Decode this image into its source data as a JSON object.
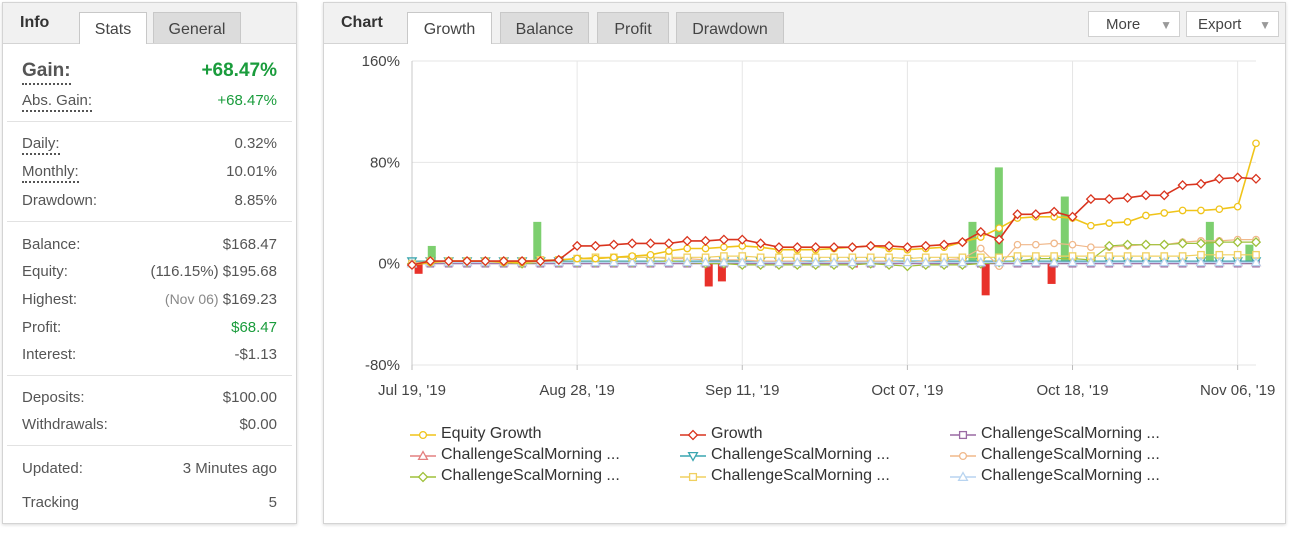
{
  "left_panel": {
    "tabs": [
      {
        "label": "Info",
        "active": false,
        "title": true
      },
      {
        "label": "Stats",
        "active": true
      },
      {
        "label": "General",
        "active": false
      }
    ],
    "gain": {
      "label": "Gain:",
      "value": "+68.47%"
    },
    "abs_gain": {
      "label": "Abs. Gain:",
      "value": "+68.47%"
    },
    "daily": {
      "label": "Daily:",
      "value": "0.32%"
    },
    "monthly": {
      "label": "Monthly:",
      "value": "10.01%"
    },
    "drawdown": {
      "label": "Drawdown:",
      "value": "8.85%"
    },
    "balance": {
      "label": "Balance:",
      "value": "$168.47"
    },
    "equity": {
      "label": "Equity:",
      "prefix": "(116.15%)",
      "value": "$195.68"
    },
    "highest": {
      "label": "Highest:",
      "prefix": "(Nov 06)",
      "value": "$169.23"
    },
    "profit": {
      "label": "Profit:",
      "value": "$68.47"
    },
    "interest": {
      "label": "Interest:",
      "value": "-$1.13"
    },
    "deposits": {
      "label": "Deposits:",
      "value": "$100.00"
    },
    "withdrawals": {
      "label": "Withdrawals:",
      "value": "$0.00"
    },
    "updated": {
      "label": "Updated:",
      "value": "3 Minutes ago"
    },
    "tracking": {
      "label": "Tracking",
      "value": "5"
    }
  },
  "chart_panel": {
    "title": "Chart",
    "tabs": [
      "Growth",
      "Balance",
      "Profit",
      "Drawdown"
    ],
    "active_tab": "Growth",
    "more_label": "More",
    "export_label": "Export"
  },
  "colors": {
    "gain_green": "#1a9c3c",
    "equity": "#f0c419",
    "growth": "#d9341e",
    "bar_pos": "#7dcf6f",
    "bar_neg": "#e8312a"
  },
  "chart_data": {
    "type": "line",
    "ylim": [
      -80,
      160
    ],
    "yticks": [
      "160%",
      "80%",
      "0%",
      "-80%"
    ],
    "ytick_values": [
      160,
      80,
      0,
      -80
    ],
    "xticks": [
      "Jul 19, '19",
      "Aug 28, '19",
      "Sep 11, '19",
      "Oct 07, '19",
      "Oct 18, '19",
      "Nov 06, '19"
    ],
    "xtick_index": [
      0,
      9,
      18,
      27,
      36,
      45
    ],
    "grid": true,
    "legend_position": "bottom",
    "series": [
      {
        "name": "Equity Growth",
        "color": "#f0c419",
        "marker": "circle",
        "values": [
          -1,
          1,
          2,
          2,
          2,
          1,
          1,
          2,
          3,
          4,
          4,
          5,
          6,
          7,
          10,
          12,
          12,
          13,
          14,
          13,
          11,
          11,
          11,
          12,
          13,
          14,
          12,
          11,
          12,
          13,
          17,
          21,
          28,
          36,
          37,
          37,
          36,
          30,
          32,
          33,
          38,
          40,
          42,
          42,
          43,
          45,
          95
        ]
      },
      {
        "name": "Growth",
        "color": "#d9341e",
        "marker": "diamond",
        "values": [
          -1,
          2,
          2,
          2,
          2,
          2,
          2,
          2,
          3,
          14,
          14,
          15,
          16,
          16,
          16,
          18,
          18,
          19,
          19,
          16,
          13,
          13,
          13,
          13,
          13,
          14,
          14,
          13,
          14,
          15,
          17,
          25,
          19,
          39,
          39,
          41,
          37,
          51,
          51,
          52,
          54,
          54,
          62,
          63,
          67,
          68,
          67
        ]
      },
      {
        "name": "ChallengeScalMorning ...",
        "color": "#9a6aa3",
        "marker": "square",
        "values": [
          0,
          0,
          0,
          0,
          0,
          0,
          0,
          0,
          0,
          0,
          0,
          0,
          0,
          0,
          0,
          0,
          0,
          0,
          0,
          0,
          0,
          0,
          0,
          0,
          0,
          0,
          0,
          0,
          0,
          0,
          0,
          0,
          0,
          0,
          0,
          0,
          0,
          0,
          0,
          0,
          0,
          0,
          0,
          0,
          0,
          0,
          0
        ]
      },
      {
        "name": "ChallengeScalMorning ...",
        "color": "#e48080",
        "marker": "triangle",
        "values": [
          1,
          1,
          1,
          1,
          1,
          1,
          1,
          1,
          1,
          1,
          1,
          1,
          1,
          1,
          1,
          1,
          1,
          1,
          1,
          1,
          1,
          1,
          1,
          1,
          1,
          1,
          1,
          1,
          1,
          1,
          1,
          1,
          1,
          1,
          1,
          1,
          1,
          1,
          1,
          1,
          1,
          1,
          1,
          1,
          1,
          1,
          1
        ]
      },
      {
        "name": "ChallengeScalMorning ...",
        "color": "#3aa6b0",
        "marker": "triangle-down",
        "values": [
          2,
          2,
          2,
          2,
          2,
          2,
          2,
          2,
          2,
          2,
          2,
          2,
          2,
          2,
          2,
          2,
          2,
          2,
          2,
          2,
          2,
          2,
          2,
          2,
          2,
          2,
          2,
          2,
          2,
          2,
          2,
          2,
          2,
          2,
          2,
          2,
          2,
          2,
          2,
          2,
          2,
          2,
          2,
          2,
          2,
          2,
          2
        ]
      },
      {
        "name": "ChallengeScalMorning ...",
        "color": "#f0b88a",
        "marker": "circle",
        "values": [
          0,
          2,
          2,
          2,
          2,
          1,
          0,
          1,
          3,
          4,
          4,
          5,
          5,
          5,
          4,
          4,
          3,
          3,
          3,
          2,
          2,
          2,
          1,
          2,
          2,
          2,
          2,
          1,
          2,
          3,
          4,
          12,
          -2,
          15,
          15,
          16,
          15,
          13,
          13,
          14,
          15,
          15,
          17,
          18,
          18,
          19,
          19
        ]
      },
      {
        "name": "ChallengeScalMorning ...",
        "color": "#9fc13a",
        "marker": "diamond",
        "values": [
          0,
          1,
          1,
          1,
          1,
          1,
          0,
          1,
          1,
          1,
          1,
          1,
          1,
          1,
          2,
          1,
          0,
          0,
          -1,
          -1,
          -1,
          -1,
          -1,
          -1,
          -1,
          0,
          -1,
          -2,
          -1,
          -1,
          -1,
          0,
          1,
          2,
          4,
          4,
          4,
          3,
          14,
          15,
          15,
          15,
          16,
          16,
          17,
          17,
          17
        ]
      },
      {
        "name": "ChallengeScalMorning ...",
        "color": "#f0d060",
        "marker": "square",
        "values": [
          0,
          2,
          2,
          2,
          2,
          2,
          2,
          3,
          3,
          4,
          5,
          5,
          5,
          5,
          5,
          5,
          5,
          6,
          6,
          5,
          5,
          5,
          5,
          5,
          5,
          5,
          5,
          4,
          5,
          5,
          5,
          5,
          5,
          6,
          6,
          6,
          6,
          6,
          6,
          6,
          6,
          6,
          6,
          7,
          7,
          7,
          7
        ]
      },
      {
        "name": "ChallengeScalMorning ...",
        "color": "#b8d4f0",
        "marker": "triangle",
        "values": [
          0,
          1,
          1,
          1,
          1,
          1,
          1,
          1,
          1,
          1,
          1,
          1,
          1,
          1,
          1,
          1,
          1,
          1,
          1,
          1,
          1,
          1,
          1,
          1,
          1,
          1,
          1,
          1,
          1,
          1,
          1,
          1,
          1,
          1,
          1,
          1,
          1,
          1,
          1,
          1,
          1,
          1,
          1,
          1,
          1,
          1,
          1
        ]
      }
    ],
    "bars": {
      "name": "daily change",
      "values": [
        -8,
        14,
        0,
        0,
        0,
        0,
        0,
        0,
        0,
        33,
        0,
        0,
        0,
        0,
        0,
        0,
        0,
        0,
        0,
        0,
        0,
        0,
        -18,
        -14,
        0,
        0,
        0,
        0,
        0,
        0,
        0,
        0,
        0,
        -3,
        0,
        0,
        0,
        0,
        0,
        0,
        0,
        0,
        33,
        -25,
        76,
        0,
        0,
        0,
        -16,
        53,
        0,
        0,
        0,
        0,
        0,
        0,
        0,
        0,
        0,
        0,
        33,
        0,
        0,
        15
      ]
    }
  }
}
